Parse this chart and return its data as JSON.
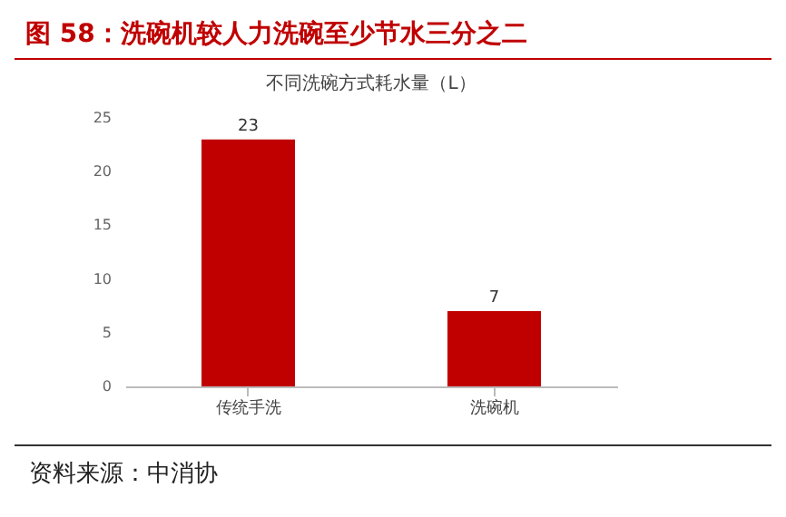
{
  "chart_data": {
    "type": "bar",
    "title": "图 58：洗碗机较人力洗碗至少节水三分之二",
    "subtitle": "不同洗碗方式耗水量（L）",
    "categories": [
      "传统手洗",
      "洗碗机"
    ],
    "values": [
      23,
      7
    ],
    "color": "#c00000",
    "ylim": [
      0,
      25
    ],
    "yticks": [
      0,
      5,
      10,
      15,
      20,
      25
    ],
    "grid": false,
    "data_labels": true,
    "annotations": [
      "资料来源：中消协"
    ]
  }
}
